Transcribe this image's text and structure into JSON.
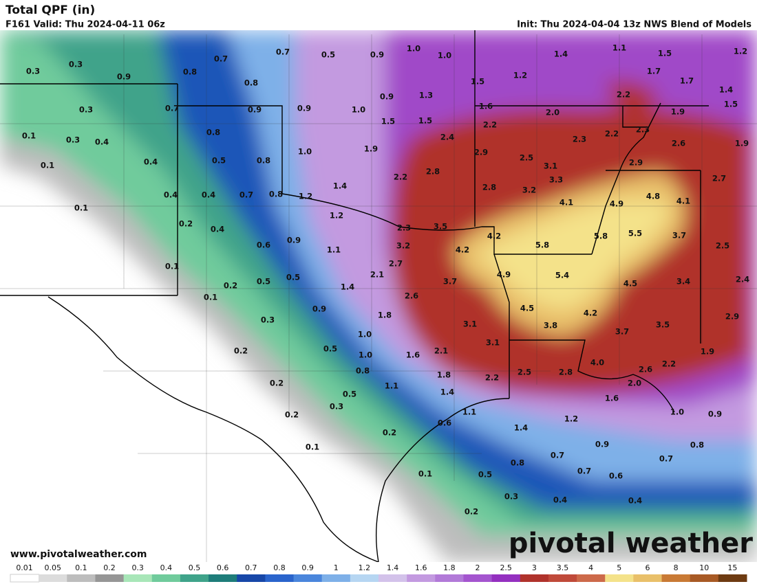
{
  "header": {
    "title": "Total QPF (in)",
    "valid": "F161 Valid: Thu 2024-04-11 06z",
    "init": "Init: Thu 2024-04-04 13z NWS Blend of Models"
  },
  "footer": {
    "url": "www.pivotalweather.com",
    "logo": "pivotal weather"
  },
  "colorbar": {
    "labels": [
      "0.01",
      "0.05",
      "0.1",
      "0.2",
      "0.3",
      "0.4",
      "0.5",
      "0.6",
      "0.7",
      "0.8",
      "0.9",
      "1",
      "1.2",
      "1.4",
      "1.6",
      "1.8",
      "2",
      "2.5",
      "3",
      "3.5",
      "4",
      "5",
      "6",
      "8",
      "10",
      "15"
    ],
    "colors": [
      "#ffffff",
      "#dcdcdc",
      "#bdbdbd",
      "#969696",
      "#a8e6b8",
      "#70cb9c",
      "#3fa38a",
      "#1e7d7a",
      "#1747a8",
      "#2a64cc",
      "#4a86dc",
      "#7eb0e8",
      "#b6d6f2",
      "#d3c2ea",
      "#c39ae0",
      "#b27ad8",
      "#a455cf",
      "#9430c0",
      "#b0332c",
      "#c04a3a",
      "#cd6a4a",
      "#f4e28a",
      "#e9c06a",
      "#c97a35",
      "#a85a25",
      "#6e3b12"
    ]
  },
  "map": {
    "labels": [
      "0.3",
      "0.3",
      "0.9",
      "0.8",
      "0.7",
      "0.8",
      "0.7",
      "0.5",
      "0.9",
      "1.0",
      "1.0",
      "1.4",
      "1.1",
      "1.5",
      "1.2",
      "0.3",
      "0.7",
      "0.9",
      "0.9",
      "1.0",
      "0.9",
      "1.3",
      "1.5",
      "1.2",
      "1.7",
      "1.7",
      "1.4",
      "2.2",
      "1.5",
      "1.6",
      "2.0",
      "1.9",
      "0.1",
      "0.3",
      "0.4",
      "0.8",
      "1.5",
      "1.5",
      "2.2",
      "2.3",
      "2.4",
      "2.3",
      "2.2",
      "2.6",
      "1.9",
      "0.1",
      "0.4",
      "0.5",
      "0.8",
      "1.0",
      "1.9",
      "2.9",
      "2.5",
      "3.1",
      "2.9",
      "2.7",
      "0.4",
      "0.4",
      "0.7",
      "0.8",
      "1.2",
      "1.4",
      "2.2",
      "2.8",
      "2.8",
      "3.2",
      "3.3",
      "4.1",
      "4.9",
      "4.8",
      "4.1",
      "0.1",
      "0.2",
      "0.4",
      "1.2",
      "2.3",
      "3.5",
      "4.2",
      "5.8",
      "5.5",
      "3.7",
      "2.5",
      "0.1",
      "0.6",
      "0.9",
      "1.1",
      "3.2",
      "4.2",
      "5.8",
      "2.7",
      "2.1",
      "4.9",
      "5.4",
      "0.2",
      "0.5",
      "0.5",
      "1.4",
      "3.7",
      "4.5",
      "3.4",
      "2.4",
      "0.1",
      "2.6",
      "0.9",
      "4.5",
      "4.2",
      "0.3",
      "1.8",
      "3.1",
      "3.8",
      "3.5",
      "2.9",
      "1.0",
      "3.1",
      "3.7",
      "0.2",
      "0.5",
      "1.0",
      "1.6",
      "2.1",
      "1.9",
      "0.8",
      "4.0",
      "2.6",
      "2.2",
      "0.2",
      "1.8",
      "2.2",
      "2.5",
      "2.8",
      "2.0",
      "1.1",
      "0.5",
      "1.4",
      "0.3",
      "0.2",
      "1.1",
      "1.6",
      "1.0",
      "0.9",
      "1.2",
      "0.6",
      "1.4",
      "0.2",
      "0.1",
      "0.9",
      "0.8",
      "0.7",
      "0.8",
      "0.7",
      "0.7",
      "0.6",
      "0.1",
      "0.5",
      "0.3",
      "0.4",
      "0.4",
      "0.2"
    ]
  }
}
